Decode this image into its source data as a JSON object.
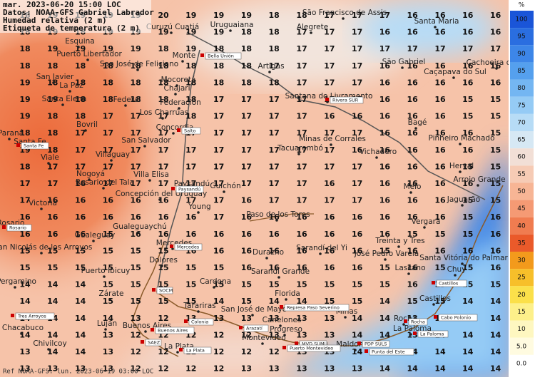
{
  "header": {
    "lines": [
      "mar. 2023-06-20 15:00 LOC",
      "Datos: NOAA-GFS Gabriel Labrador",
      "Humedad relativa (2 m)",
      "Etiqueta de temperatura (2 m)"
    ]
  },
  "footer": "Ref NOAA-GFS: lun. 2023-06-19 03:00 LOC",
  "colorbar": {
    "unit": "%",
    "ticks": [
      100,
      95,
      90,
      85,
      80,
      75,
      70,
      65,
      60,
      55,
      50,
      45,
      40,
      35,
      30,
      25,
      20,
      15,
      10,
      {
        "value": 5,
        "label": "5.0"
      },
      {
        "value": 0,
        "label": "0.0"
      }
    ],
    "colors": [
      "#1a55d8",
      "#2a6ee0",
      "#3d86e8",
      "#55a0ee",
      "#74b6f2",
      "#95cbf5",
      "#b7dcf6",
      "#d6e8f4",
      "#f2dfd6",
      "#f6cbb5",
      "#f7b595",
      "#f59a74",
      "#f07c50",
      "#ea5a2a",
      "#f39a1c",
      "#f7bf2a",
      "#fbe04a",
      "#fdf08a",
      "#fef7c0",
      "#fffbe0",
      "#ffffff"
    ]
  },
  "temperature_grid": [
    [
      18,
      19,
      19,
      19,
      19,
      20,
      19,
      19,
      19,
      18,
      18,
      17,
      17,
      17,
      16,
      16,
      16,
      16
    ],
    [
      18,
      19,
      18,
      19,
      19,
      19,
      19,
      19,
      18,
      18,
      17,
      17,
      17,
      16,
      16,
      16,
      16,
      16
    ],
    [
      18,
      19,
      19,
      19,
      19,
      18,
      19,
      18,
      18,
      18,
      17,
      17,
      17,
      17,
      17,
      17,
      17,
      17
    ],
    [
      18,
      18,
      18,
      18,
      18,
      18,
      18,
      18,
      18,
      17,
      17,
      17,
      17,
      16,
      16,
      16,
      16,
      16
    ],
    [
      19,
      18,
      18,
      18,
      18,
      18,
      18,
      18,
      18,
      18,
      17,
      17,
      17,
      16,
      16,
      16,
      16,
      16
    ],
    [
      19,
      19,
      18,
      18,
      18,
      18,
      18,
      17,
      17,
      17,
      17,
      17,
      17,
      16,
      16,
      16,
      15,
      15
    ],
    [
      19,
      18,
      18,
      17,
      17,
      17,
      18,
      17,
      17,
      17,
      17,
      16,
      16,
      16,
      16,
      16,
      15,
      15
    ],
    [
      18,
      18,
      17,
      17,
      17,
      17,
      17,
      17,
      17,
      17,
      17,
      17,
      17,
      16,
      16,
      16,
      16,
      15
    ],
    [
      19,
      18,
      17,
      17,
      17,
      17,
      17,
      17,
      17,
      17,
      17,
      17,
      16,
      16,
      16,
      16,
      16,
      15
    ],
    [
      18,
      17,
      17,
      17,
      17,
      17,
      17,
      17,
      17,
      17,
      17,
      17,
      17,
      16,
      16,
      16,
      15,
      15
    ],
    [
      17,
      17,
      16,
      17,
      17,
      17,
      17,
      17,
      17,
      17,
      17,
      16,
      17,
      16,
      16,
      16,
      16,
      15
    ],
    [
      17,
      16,
      16,
      16,
      16,
      16,
      17,
      17,
      16,
      17,
      17,
      17,
      17,
      16,
      16,
      16,
      15,
      15
    ],
    [
      16,
      16,
      16,
      16,
      16,
      16,
      16,
      17,
      16,
      16,
      16,
      16,
      16,
      16,
      16,
      16,
      15,
      16
    ],
    [
      16,
      16,
      16,
      15,
      16,
      16,
      16,
      16,
      16,
      16,
      16,
      16,
      16,
      16,
      15,
      15,
      15,
      16
    ],
    [
      15,
      15,
      15,
      15,
      15,
      15,
      16,
      16,
      16,
      16,
      16,
      16,
      16,
      15,
      16,
      16,
      16,
      16
    ],
    [
      15,
      15,
      15,
      15,
      15,
      15,
      15,
      15,
      16,
      16,
      16,
      16,
      16,
      15,
      16,
      15,
      15,
      16
    ],
    [
      14,
      14,
      14,
      15,
      15,
      15,
      15,
      15,
      15,
      15,
      15,
      15,
      15,
      15,
      16,
      15,
      15,
      15
    ],
    [
      14,
      14,
      14,
      15,
      15,
      15,
      15,
      14,
      15,
      14,
      14,
      15,
      15,
      14,
      15,
      15,
      14,
      14
    ],
    [
      14,
      14,
      14,
      14,
      13,
      12,
      13,
      13,
      13,
      13,
      13,
      13,
      14,
      14,
      13,
      14,
      14,
      14
    ],
    [
      14,
      14,
      14,
      13,
      12,
      12,
      12,
      12,
      12,
      13,
      13,
      13,
      14,
      14,
      13,
      14,
      14,
      14
    ],
    [
      13,
      14,
      14,
      13,
      12,
      12,
      12,
      12,
      12,
      12,
      13,
      13,
      14,
      13,
      14,
      14,
      14,
      14
    ],
    [
      13,
      13,
      13,
      13,
      12,
      12,
      12,
      12,
      13,
      13,
      13,
      13,
      13,
      14,
      14,
      14,
      14,
      14
    ]
  ],
  "places": [
    "São Francisco de Assis",
    "Santa Maria",
    "Curuzú Cuatiá",
    "Uruguaiana",
    "Alegrete",
    "Esquina",
    "Puerto Libertador",
    "Monte",
    "San José de Feliciano",
    "São Gabriel",
    "Caçapava do Sul",
    "Cachoeira do Sul",
    "Artigas",
    "San Javier",
    "Mocoretá",
    "Chajarí",
    "Federal",
    "Federación",
    "Los Charrúas",
    "Santana do Livramento",
    "Concordia",
    "Bagé",
    "Pinheiro Machado",
    "San Salvador",
    "Minas de Corrales",
    "Tacuarembó",
    "Vichadero",
    "Villaguay",
    "Rosario del Tala",
    "Villa Elisa",
    "Herval",
    "Arroio Grande",
    "Paysandú",
    "Concepción del Uruguay",
    "Guichón",
    "Melo",
    "Jaguarão",
    "Young",
    "Paso de los Toros",
    "Gualeguaychú",
    "Vergara",
    "Treinta y Tres",
    "Mercedes",
    "Durazno",
    "Sarandí del Yi",
    "José Pedro Varela",
    "Santa Vitória do Palmar",
    "Dolores",
    "Sarandí Grande",
    "Lascano",
    "Chuy",
    "Cardona",
    "Florida",
    "Castillos",
    "San José de Mayo",
    "Minas",
    "Rocha",
    "Buenos Aires",
    "Canelones",
    "Progreso",
    "La Paloma",
    "La Plata",
    "Montevideo",
    "Maldonado",
    "Zárate",
    "Luján",
    "Chacabuco",
    "Chivilcoy",
    "Pergamino",
    "San Nicolás de los Arroyos",
    "Rosario",
    "Victoria",
    "Santa Fe",
    "Paraná",
    "Santa Elena",
    "La Paz",
    "Bovril",
    "Viale",
    "Nogoyá",
    "Gualeguay",
    "Tarariras",
    "Puerto Ibicuy"
  ],
  "stations": [
    "Bella Unión",
    "Salto",
    "Paysandú",
    "Rivera SUR",
    "Mercedes",
    "SOCM",
    "Colonia",
    "Buenos Aires",
    "Represa Paso Severino",
    "MVD SUMU",
    "Puerto Montevideo",
    "PDP SULS",
    "Punta del Este",
    "Rocha",
    "La Paloma",
    "Cabo Polonio",
    "Castillos",
    "La Plata",
    "Arazatí",
    "SAEZ",
    "Rosario",
    "Santa Fe",
    "Tres Arroyos"
  ]
}
